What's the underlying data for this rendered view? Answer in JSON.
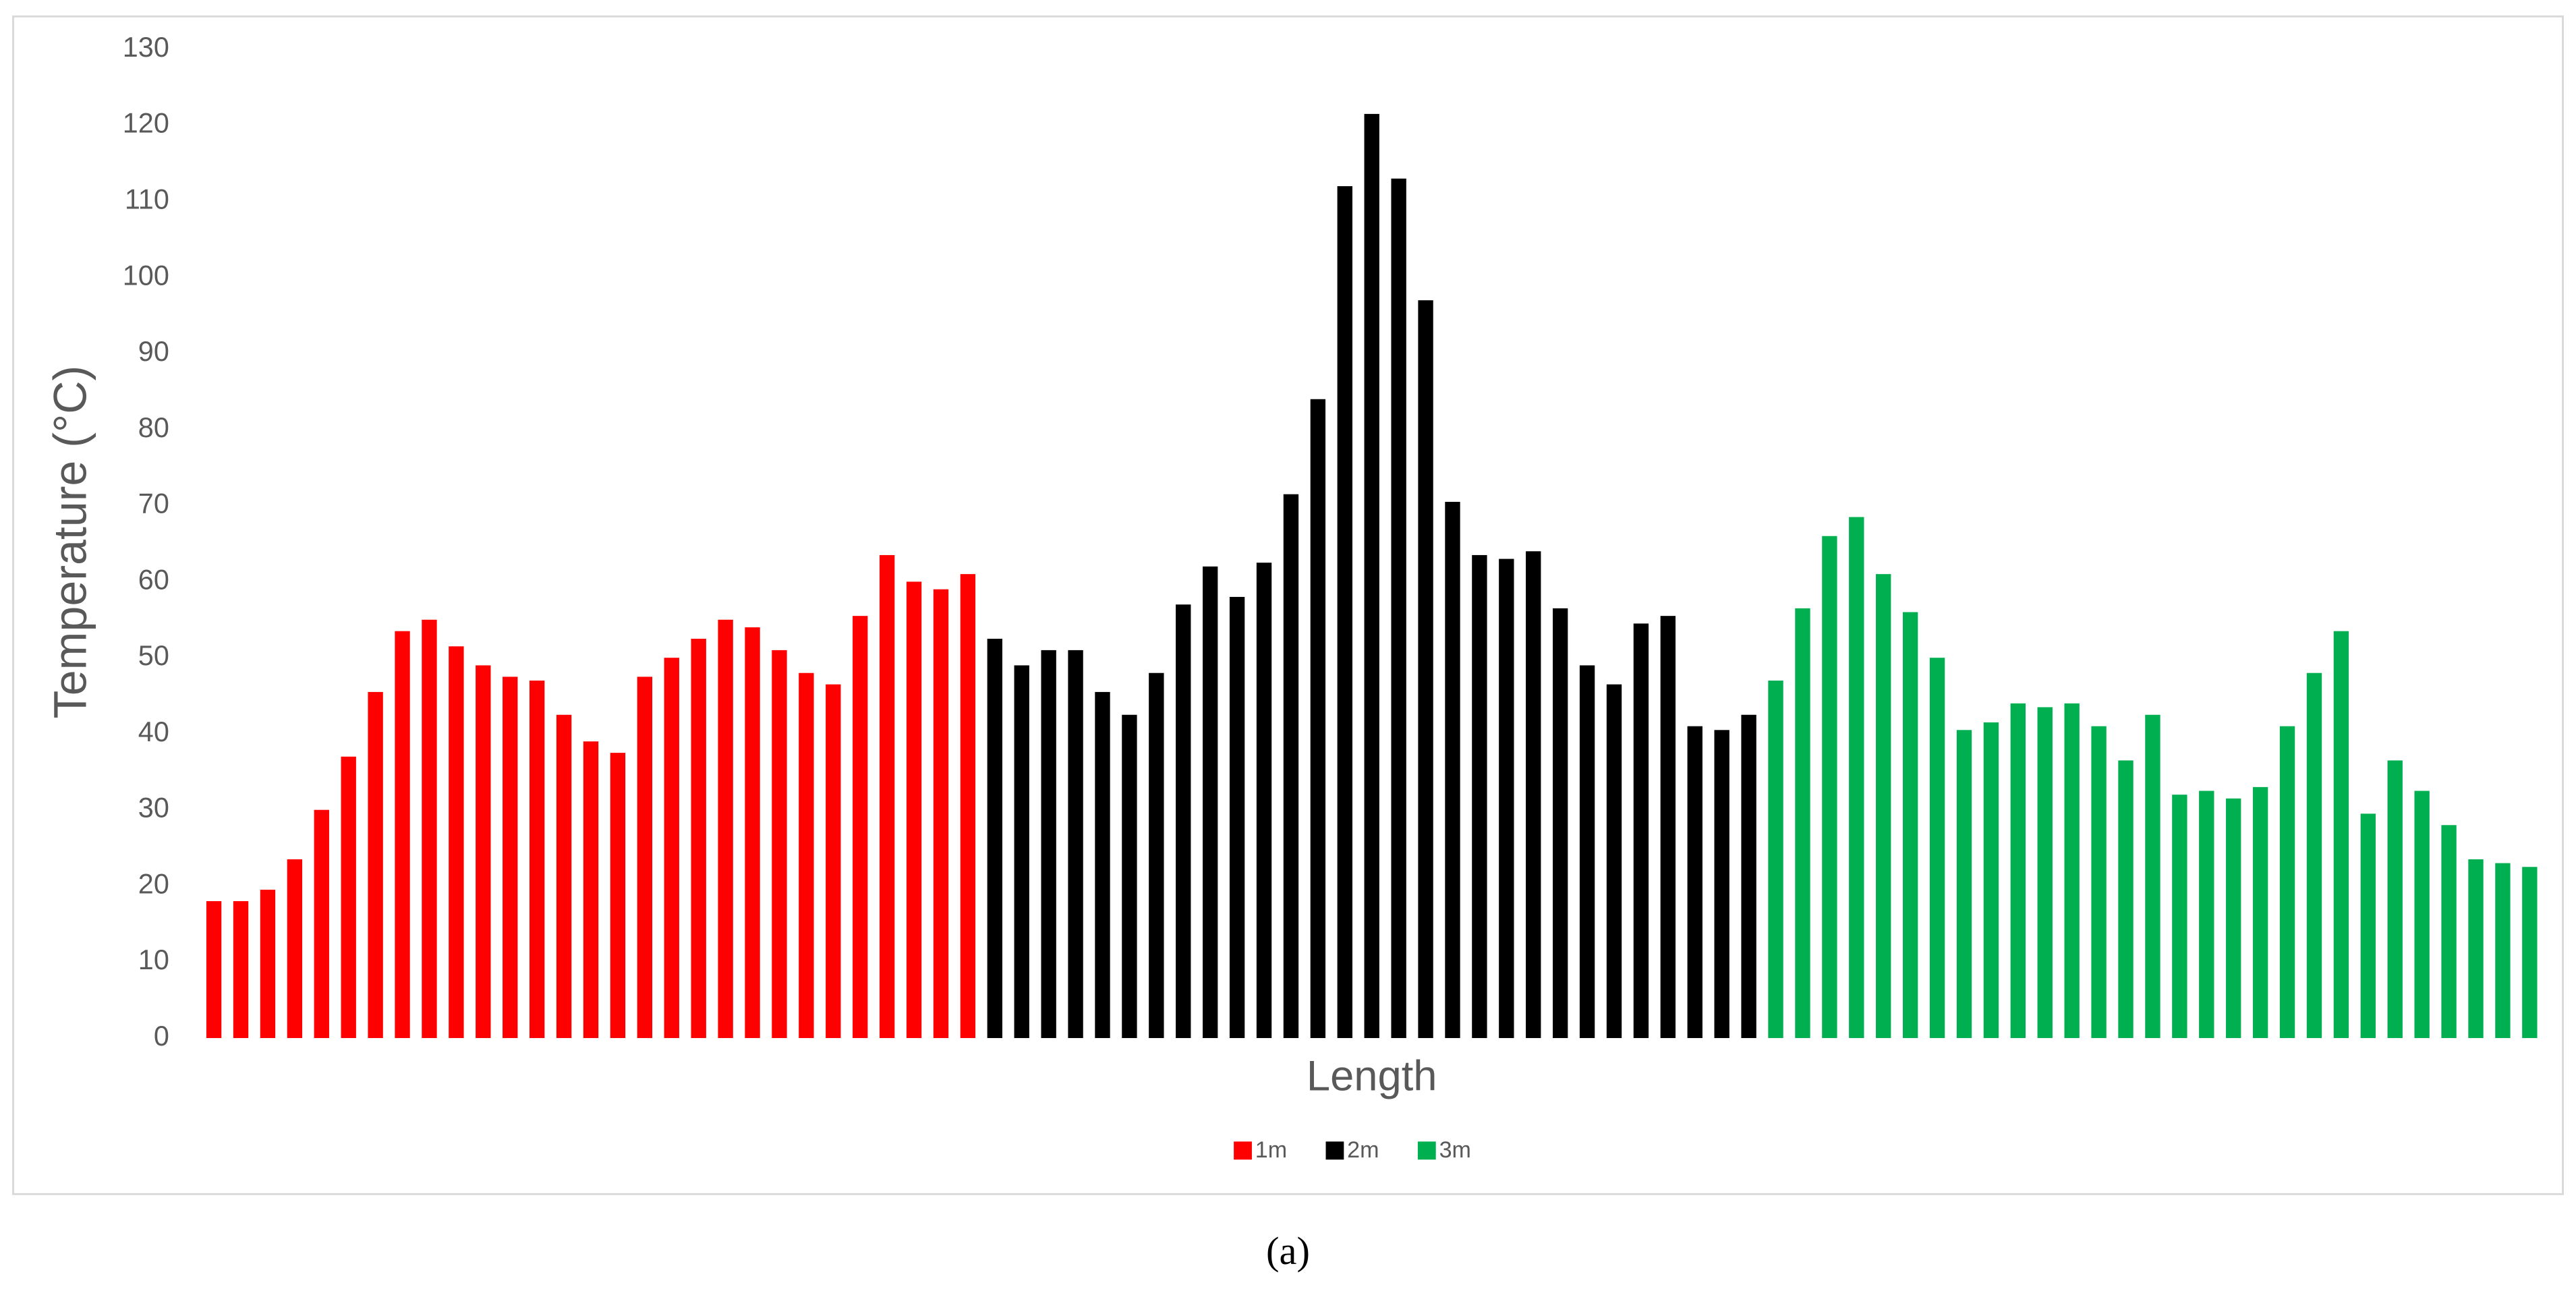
{
  "chart_data": {
    "type": "bar",
    "x_label": "Length",
    "y_label": "Temperature (°C)",
    "caption": "(a)",
    "ylim": [
      0,
      130
    ],
    "yticks": [
      0,
      10,
      20,
      30,
      40,
      50,
      60,
      70,
      80,
      90,
      100,
      110,
      120,
      130
    ],
    "grid": false,
    "legend": "bottom",
    "series": [
      {
        "name": "1m",
        "color": "#ff0000",
        "values": [
          18,
          18,
          19.5,
          23.5,
          30,
          37,
          45.5,
          53.5,
          55,
          51.5,
          49,
          47.5,
          47,
          42.5,
          39,
          37.5,
          47.5,
          50,
          52.5,
          55,
          54,
          51,
          48,
          46.5,
          55.5,
          63.5,
          60,
          59,
          61
        ]
      },
      {
        "name": "2m",
        "color": "#000000",
        "values": [
          52.5,
          49,
          51,
          51,
          45.5,
          42.5,
          48,
          57,
          62,
          58,
          62.5,
          71.5,
          84,
          112,
          121.5,
          113,
          97,
          70.5,
          63.5,
          63,
          64,
          56.5,
          49,
          46.5,
          54.5,
          55.5,
          41,
          40.5,
          42.5
        ]
      },
      {
        "name": "3m",
        "color": "#00b050",
        "values": [
          47,
          56.5,
          66,
          68.5,
          61,
          56,
          50,
          40.5,
          41.5,
          44,
          43.5,
          44,
          41,
          36.5,
          42.5,
          32,
          32.5,
          31.5,
          33,
          41,
          48,
          53.5,
          29.5,
          36.5,
          32.5,
          28,
          23.5,
          23,
          22.5
        ]
      }
    ]
  }
}
